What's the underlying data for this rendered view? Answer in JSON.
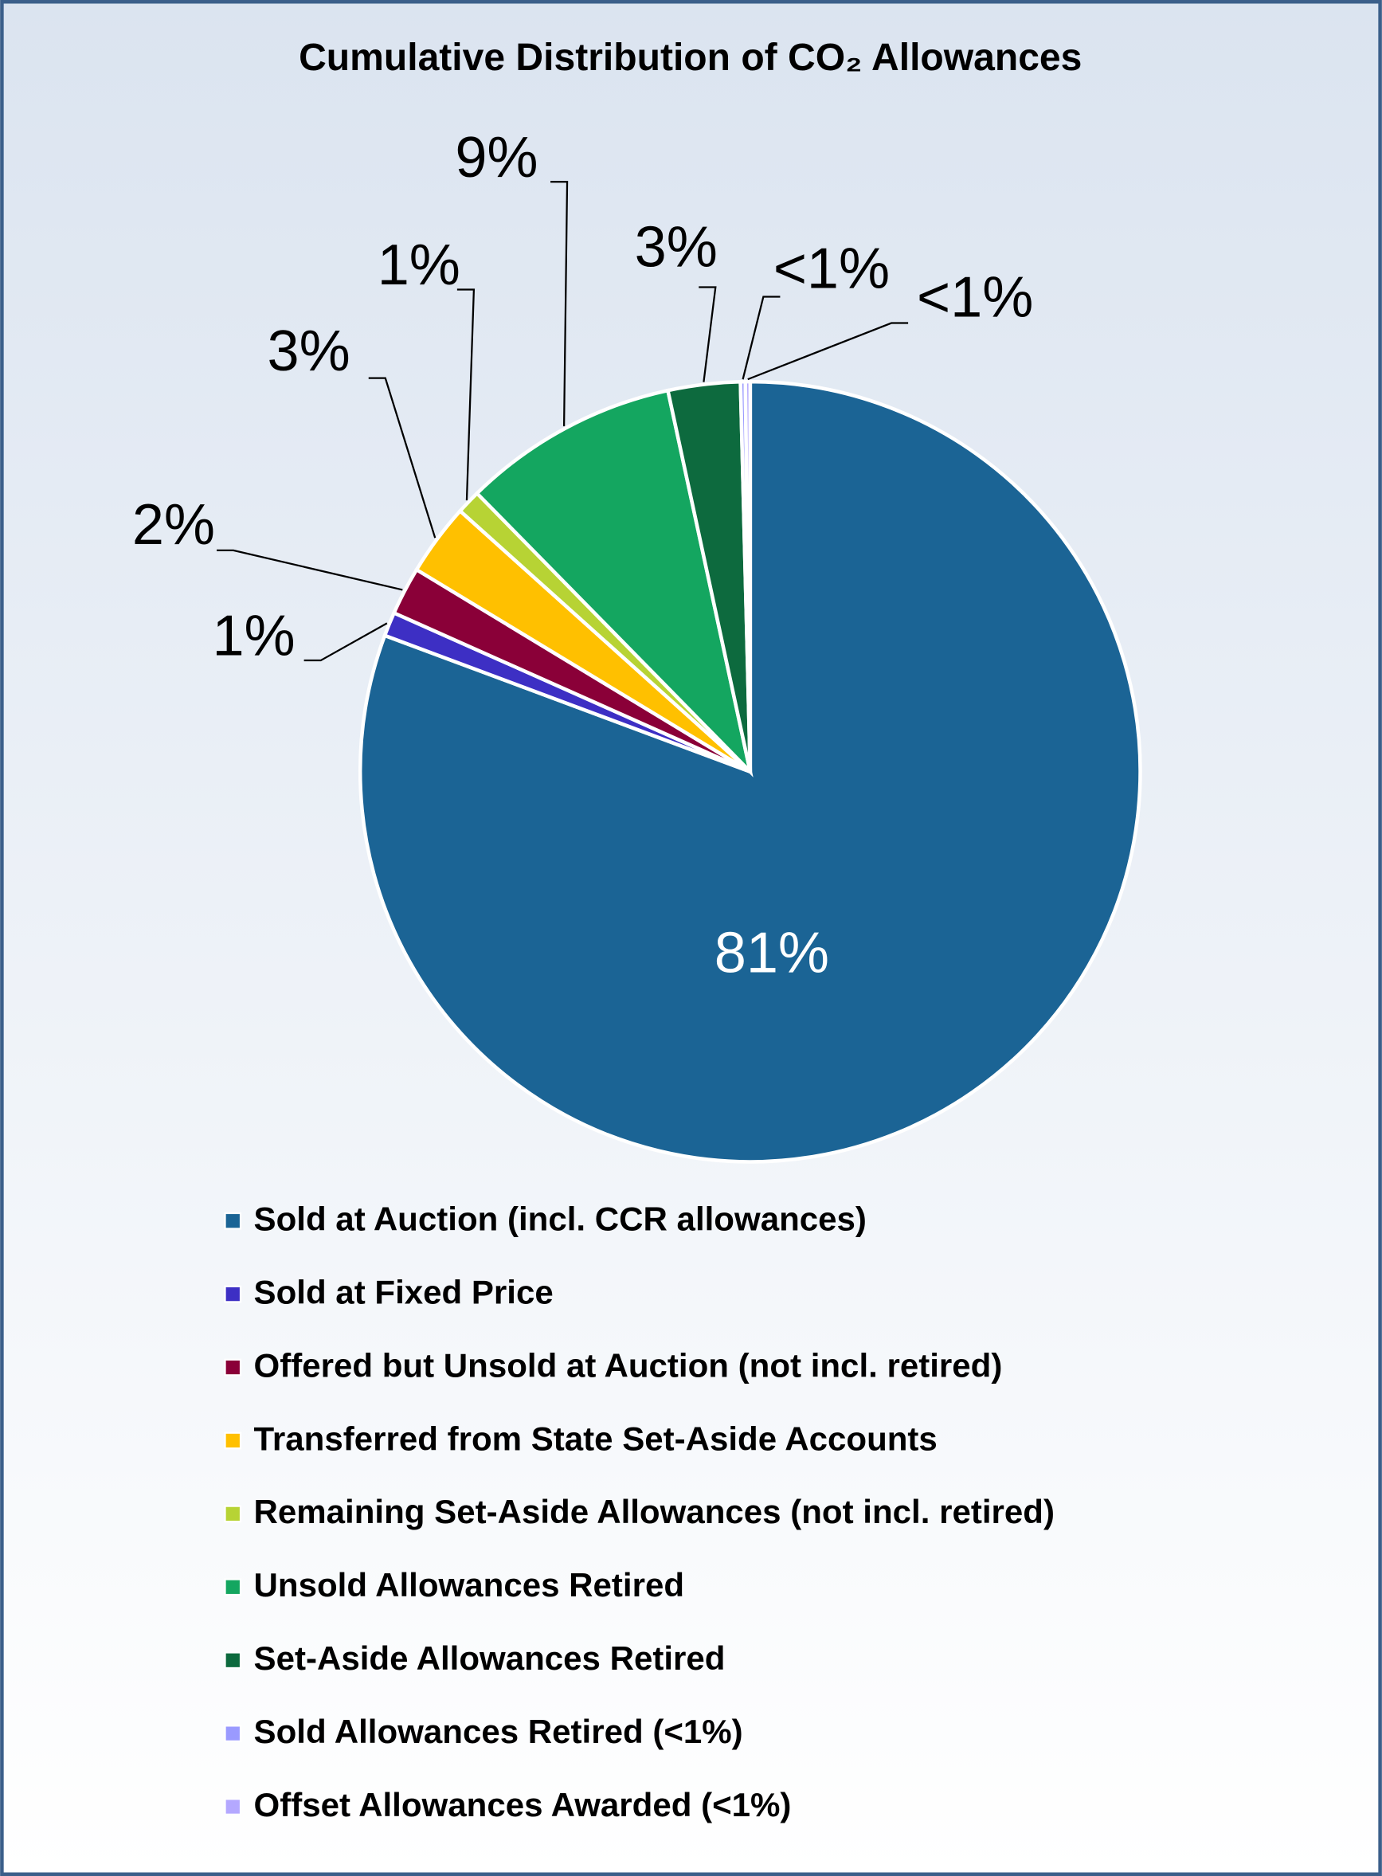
{
  "chart_data": {
    "type": "pie",
    "title": "Cumulative Distribution of CO₂ Allowances",
    "categories": [
      "Sold at Auction (incl. CCR allowances)",
      "Sold at Fixed Price",
      "Offered but Unsold at Auction (not incl. retired)",
      "Transferred from State Set-Aside Accounts",
      "Remaining Set-Aside Allowances (not incl. retired)",
      "Unsold Allowances Retired",
      "Set-Aside Allowances Retired",
      "Sold Allowances Retired (<1%)",
      "Offset Allowances Awarded (<1%)"
    ],
    "values": [
      81,
      1,
      2,
      3,
      1,
      9,
      3,
      0.2,
      0.2
    ],
    "value_labels": [
      "81%",
      "1%",
      "2%",
      "3%",
      "1%",
      "9%",
      "3%",
      "<1%",
      "<1%"
    ],
    "colors": [
      "#1b6495",
      "#3d2fc4",
      "#8a0038",
      "#ffc000",
      "#b7d334",
      "#14a660",
      "#0d6a3e",
      "#9a9aff",
      "#b4a8ff"
    ]
  }
}
